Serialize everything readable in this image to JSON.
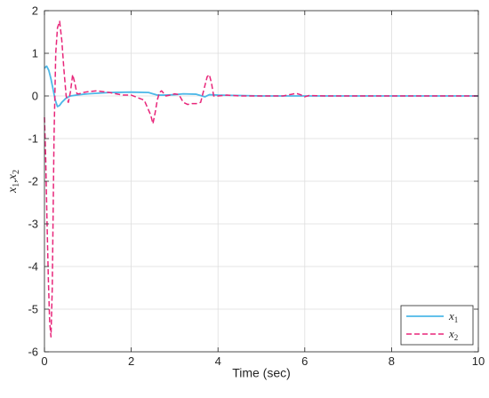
{
  "chart_data": {
    "type": "line",
    "title": "",
    "xlabel": "Time (sec)",
    "ylabel": {
      "base": "x",
      "sub1": "1",
      "sep": ",",
      "sub2": "2"
    },
    "xlim": [
      0,
      10
    ],
    "ylim": [
      -6,
      2
    ],
    "xticks": [
      0,
      2,
      4,
      6,
      8,
      10
    ],
    "yticks": [
      -6,
      -5,
      -4,
      -3,
      -2,
      -1,
      0,
      1,
      2
    ],
    "grid": true,
    "legend_position": "bottom-right",
    "series": [
      {
        "name": {
          "base": "x",
          "sub": "1"
        },
        "color": "#4db8e8",
        "style": "solid",
        "x": [
          0,
          0.05,
          0.1,
          0.15,
          0.2,
          0.25,
          0.3,
          0.35,
          0.4,
          0.5,
          0.6,
          0.8,
          1.0,
          1.5,
          2.0,
          2.4,
          2.5,
          2.6,
          2.8,
          3.0,
          3.2,
          3.5,
          3.7,
          3.8,
          4.0,
          4.5,
          5.0,
          6.0,
          7.0,
          8.0,
          9.0,
          10.0
        ],
        "y": [
          0.65,
          0.7,
          0.6,
          0.4,
          0.15,
          -0.1,
          -0.25,
          -0.22,
          -0.15,
          -0.05,
          0.0,
          0.03,
          0.05,
          0.08,
          0.09,
          0.08,
          0.05,
          0.02,
          0.02,
          0.03,
          0.05,
          0.04,
          -0.02,
          0.03,
          0.02,
          0.01,
          0.0,
          0.0,
          0.0,
          0.0,
          0.0,
          0.0
        ]
      },
      {
        "name": {
          "base": "x",
          "sub": "2"
        },
        "color": "#e8267a",
        "style": "dashed",
        "x": [
          0,
          0.03,
          0.06,
          0.09,
          0.12,
          0.15,
          0.18,
          0.22,
          0.26,
          0.3,
          0.35,
          0.4,
          0.45,
          0.5,
          0.55,
          0.6,
          0.65,
          0.7,
          0.75,
          0.8,
          0.9,
          1.0,
          1.2,
          1.5,
          1.8,
          2.0,
          2.3,
          2.45,
          2.5,
          2.55,
          2.6,
          2.65,
          2.7,
          2.8,
          2.9,
          3.0,
          3.1,
          3.2,
          3.3,
          3.4,
          3.5,
          3.6,
          3.7,
          3.75,
          3.8,
          3.85,
          3.9,
          4.0,
          4.2,
          4.5,
          5.0,
          5.5,
          5.7,
          5.8,
          5.9,
          6.0,
          6.1,
          6.5,
          7.0,
          8.0,
          9.0,
          10.0
        ],
        "y": [
          -0.5,
          -1.5,
          -3.0,
          -4.3,
          -5.3,
          -5.65,
          -4.5,
          -1.0,
          1.0,
          1.6,
          1.75,
          1.3,
          0.6,
          0.0,
          -0.15,
          0.1,
          0.5,
          0.3,
          0.05,
          0.05,
          0.08,
          0.1,
          0.12,
          0.08,
          0.02,
          0.02,
          -0.1,
          -0.45,
          -0.65,
          -0.4,
          -0.1,
          0.08,
          0.12,
          0.0,
          0.02,
          0.05,
          0.03,
          -0.15,
          -0.2,
          -0.18,
          -0.18,
          -0.15,
          0.25,
          0.45,
          0.5,
          0.3,
          0.0,
          0.0,
          0.02,
          0.0,
          0.0,
          0.0,
          0.04,
          0.06,
          0.03,
          -0.02,
          0.01,
          0.0,
          0.0,
          0.0,
          0.0,
          0.0
        ]
      }
    ]
  }
}
